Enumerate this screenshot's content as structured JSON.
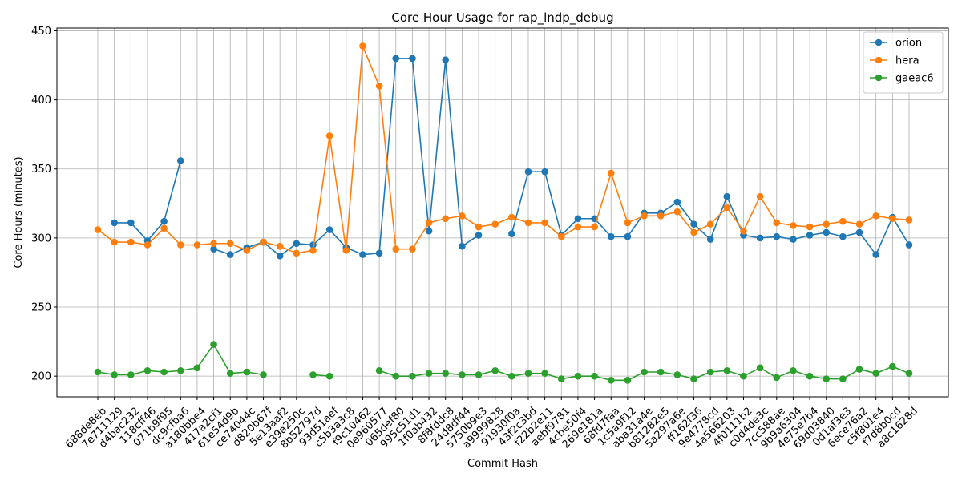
{
  "chart_data": {
    "type": "line",
    "title": "Core Hour Usage for rap_lndp_debug",
    "xlabel": "Commit Hash",
    "ylabel": "Core Hours (minutes)",
    "ylim": [
      185,
      452
    ],
    "yticks": [
      200,
      250,
      300,
      350,
      400,
      450
    ],
    "grid": true,
    "legend_position": "top-right",
    "categories": [
      "688de8eb",
      "7e711129",
      "d4bac232",
      "118cff46",
      "071b9f95",
      "dc9cfba6",
      "a180bbe4",
      "417a2cf1",
      "61e54d9b",
      "ce74044c",
      "d820b67f",
      "5e13aaf2",
      "e39a250c",
      "8b52797d",
      "93d51aef",
      "c5b3a3c8",
      "f9c10462",
      "0e960577",
      "065def80",
      "995c51d1",
      "1f0ab432",
      "8f8fddc8",
      "24d8df44",
      "5750b9e3",
      "a9999828",
      "91930f0a",
      "43f2c3bd",
      "f22b2e11",
      "aebf9781",
      "4cbe50f4",
      "269e181a",
      "68fd7faa",
      "1c5a9f12",
      "aba31a4e",
      "b81282e5",
      "5a297a6e",
      "ff162f36",
      "9e4778cd",
      "4a566203",
      "4f0111b2",
      "c0d4de3c",
      "7cc588ae",
      "9b9a6304",
      "4e75e7b4",
      "69d03840",
      "0d1af3e3",
      "6ece76a2",
      "c5f801e4",
      "f7d8b0cd",
      "a8c1628d"
    ],
    "series": [
      {
        "name": "orion",
        "color": "#1f77b4",
        "values": [
          null,
          311,
          311,
          298,
          312,
          356,
          null,
          292,
          288,
          293,
          297,
          287,
          296,
          295,
          306,
          293,
          288,
          289,
          430,
          430,
          305,
          429,
          294,
          302,
          null,
          303,
          348,
          348,
          302,
          314,
          314,
          301,
          301,
          318,
          318,
          326,
          310,
          299,
          330,
          302,
          300,
          301,
          299,
          302,
          304,
          301,
          304,
          288,
          315,
          295
        ]
      },
      {
        "name": "hera",
        "color": "#ff7f0e",
        "values": [
          306,
          297,
          297,
          295,
          307,
          295,
          295,
          296,
          296,
          291,
          297,
          294,
          289,
          291,
          374,
          291,
          439,
          410,
          292,
          292,
          311,
          314,
          316,
          308,
          310,
          315,
          311,
          311,
          301,
          308,
          308,
          347,
          311,
          316,
          316,
          319,
          304,
          310,
          322,
          305,
          330,
          311,
          309,
          308,
          310,
          312,
          310,
          316,
          314,
          313
        ]
      },
      {
        "name": "gaeac6",
        "color": "#2ca02c",
        "values": [
          203,
          201,
          201,
          204,
          203,
          204,
          206,
          223,
          202,
          203,
          201,
          null,
          null,
          201,
          200,
          null,
          null,
          204,
          200,
          200,
          202,
          202,
          201,
          201,
          204,
          200,
          202,
          202,
          198,
          200,
          200,
          197,
          197,
          203,
          203,
          201,
          198,
          203,
          204,
          200,
          206,
          199,
          204,
          200,
          198,
          198,
          205,
          202,
          207,
          202
        ]
      }
    ]
  }
}
